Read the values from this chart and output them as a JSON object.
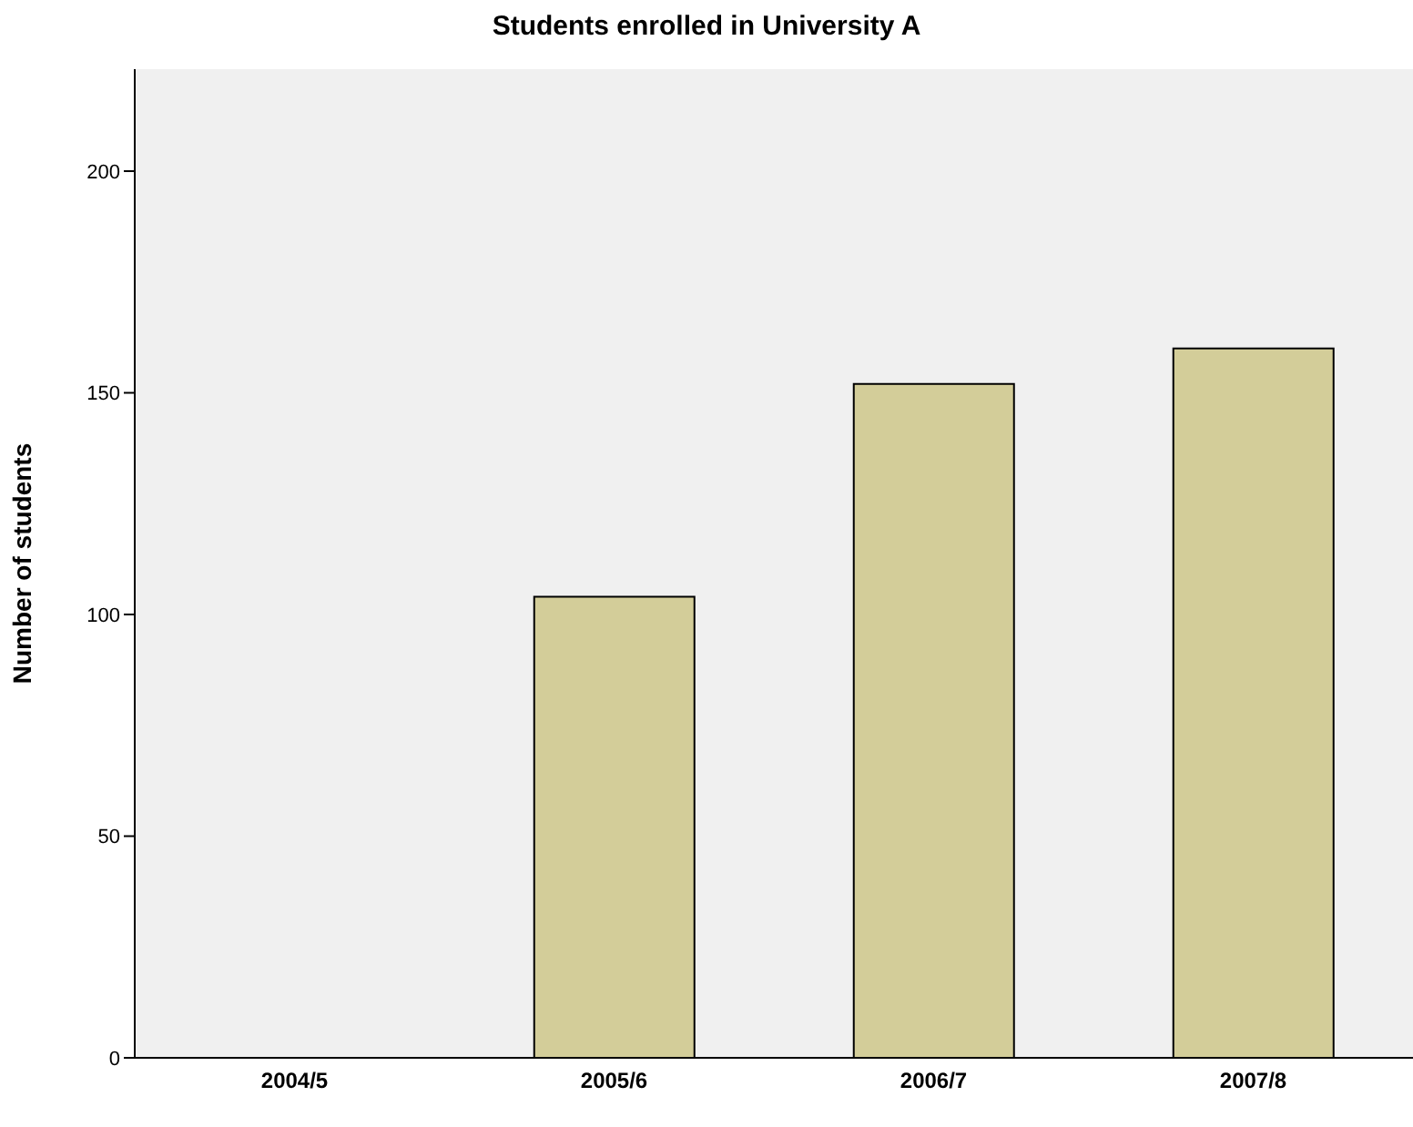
{
  "chart_data": {
    "type": "bar",
    "title": "Students enrolled in University A",
    "ylabel": "Number of students",
    "categories": [
      "2004/5",
      "2005/6",
      "2006/7",
      "2007/8"
    ],
    "values": [
      0,
      104,
      152,
      160
    ],
    "color": "#d3cd99",
    "ylim": [
      0,
      223
    ],
    "yticks": [
      0,
      50,
      100,
      150,
      200
    ]
  }
}
